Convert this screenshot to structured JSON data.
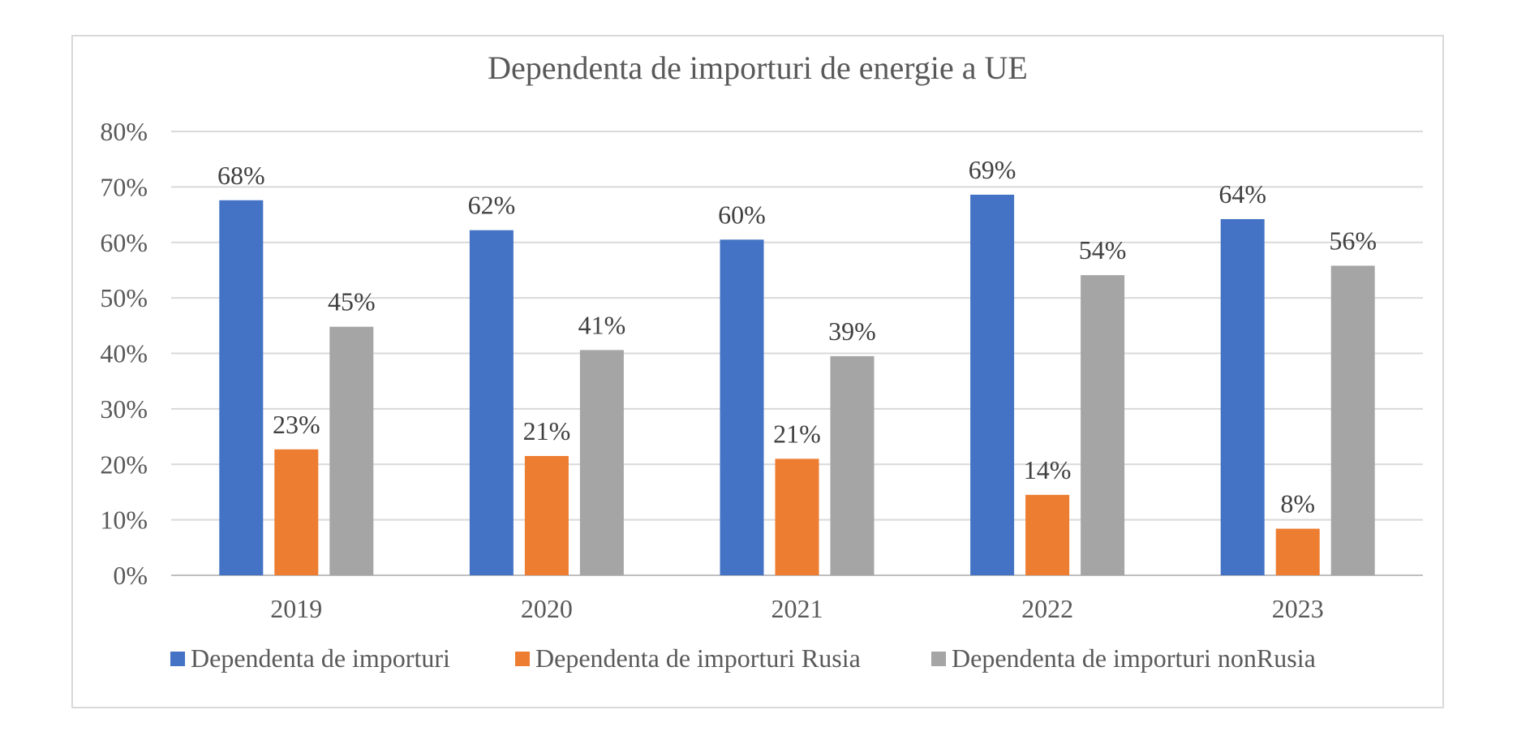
{
  "chart_data": {
    "type": "bar",
    "title": "Dependenta de importuri de energie a UE",
    "categories": [
      "2019",
      "2020",
      "2021",
      "2022",
      "2023"
    ],
    "series": [
      {
        "name": "Dependenta de importuri",
        "values": [
          0.676,
          0.622,
          0.605,
          0.686,
          0.642
        ],
        "labels": [
          "68%",
          "62%",
          "60%",
          "69%",
          "64%"
        ],
        "color": "#4472c4"
      },
      {
        "name": "Dependenta de importuri Rusia",
        "values": [
          0.227,
          0.215,
          0.21,
          0.145,
          0.084
        ],
        "labels": [
          "23%",
          "21%",
          "21%",
          "14%",
          "8%"
        ],
        "color": "#ed7d31"
      },
      {
        "name": "Dependenta de importuri nonRusia",
        "values": [
          0.448,
          0.406,
          0.395,
          0.541,
          0.558
        ],
        "labels": [
          "45%",
          "41%",
          "39%",
          "54%",
          "56%"
        ],
        "color": "#a5a5a5"
      }
    ],
    "y_ticks": [
      "0%",
      "10%",
      "20%",
      "30%",
      "40%",
      "50%",
      "60%",
      "70%",
      "80%"
    ],
    "ylim": [
      0,
      0.8
    ],
    "grid": true,
    "legend_position": "bottom"
  }
}
